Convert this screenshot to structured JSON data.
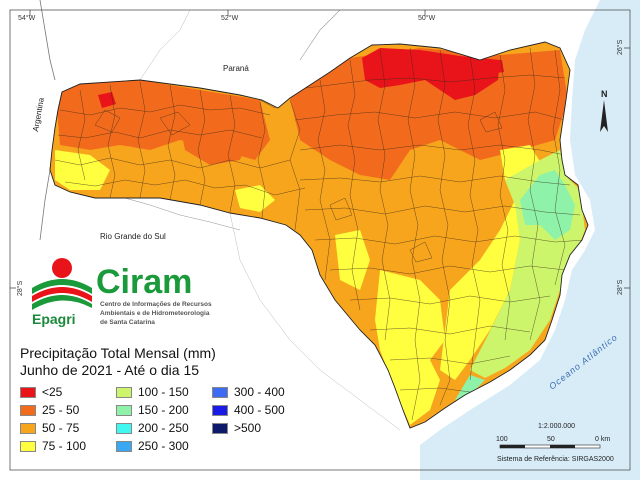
{
  "coords": {
    "top": [
      "54°W",
      "52°W",
      "50°W"
    ],
    "right": [
      "26°S",
      "28°S"
    ],
    "left": "28°S"
  },
  "places": {
    "parana": "Paraná",
    "argentina": "Argentina",
    "rio_grande_do_sul": "Rio Grande do Sul",
    "ocean": "Oceano Atlântico"
  },
  "logo": {
    "epagri": "Epagri",
    "ciram": "Ciram",
    "line1": "Centro de Informações de Recursos",
    "line2": "Ambientais e de Hidrometeorologia",
    "line3": "de Santa Catarina"
  },
  "legend": {
    "title1": "Precipitação Total Mensal (mm)",
    "title2": "Junho de 2021 - Até o dia 15",
    "items": [
      {
        "label": "<25",
        "color": "#e8141a"
      },
      {
        "label": "25 - 50",
        "color": "#f26b1d"
      },
      {
        "label": "50 - 75",
        "color": "#f8a51e"
      },
      {
        "label": "75 - 100",
        "color": "#ffff40"
      },
      {
        "label": "100 - 150",
        "color": "#cdf56b"
      },
      {
        "label": "150 - 200",
        "color": "#8ef3a8"
      },
      {
        "label": "200 - 250",
        "color": "#40f8f0"
      },
      {
        "label": "250 - 300",
        "color": "#3aa8f0"
      },
      {
        "label": "300 - 400",
        "color": "#3d6cf2"
      },
      {
        "label": "400 - 500",
        "color": "#1a1ae6"
      },
      {
        "label": ">500",
        "color": "#0d1a6b"
      }
    ]
  },
  "scale": {
    "ratio": "1:2.000.000",
    "ticks": [
      "100",
      "50",
      "0 km"
    ]
  },
  "reference": "Sistema de Referência: SIRGAS2000",
  "north": "N"
}
